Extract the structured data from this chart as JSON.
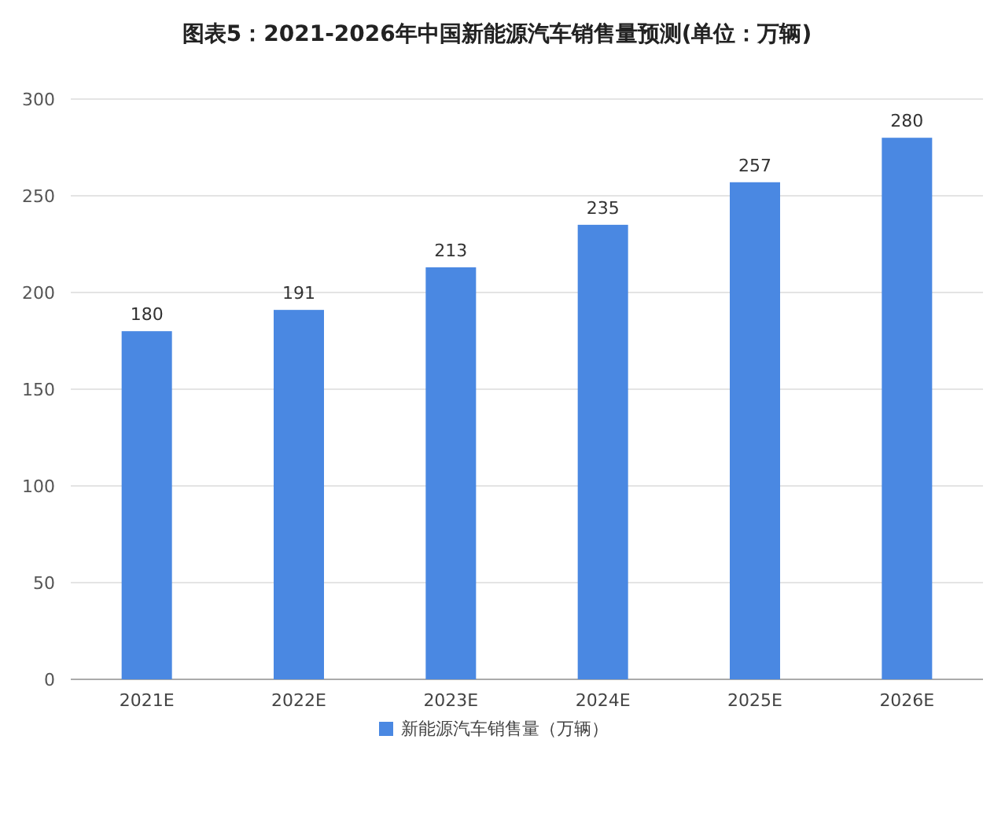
{
  "chart_data": {
    "type": "bar",
    "title": "图表5：2021-2026年中国新能源汽车销售量预测(单位：万辆)",
    "categories": [
      "2021E",
      "2022E",
      "2023E",
      "2024E",
      "2025E",
      "2026E"
    ],
    "series": [
      {
        "name": "新能源汽车销售量（万辆）",
        "color": "#4a88e2",
        "values": [
          180,
          191,
          213,
          235,
          257,
          280
        ]
      }
    ],
    "ylim": [
      0,
      300
    ],
    "yticks": [
      0,
      50,
      100,
      150,
      200,
      250,
      300
    ],
    "grid": "y",
    "legend": "bottom",
    "data_labels": true
  }
}
